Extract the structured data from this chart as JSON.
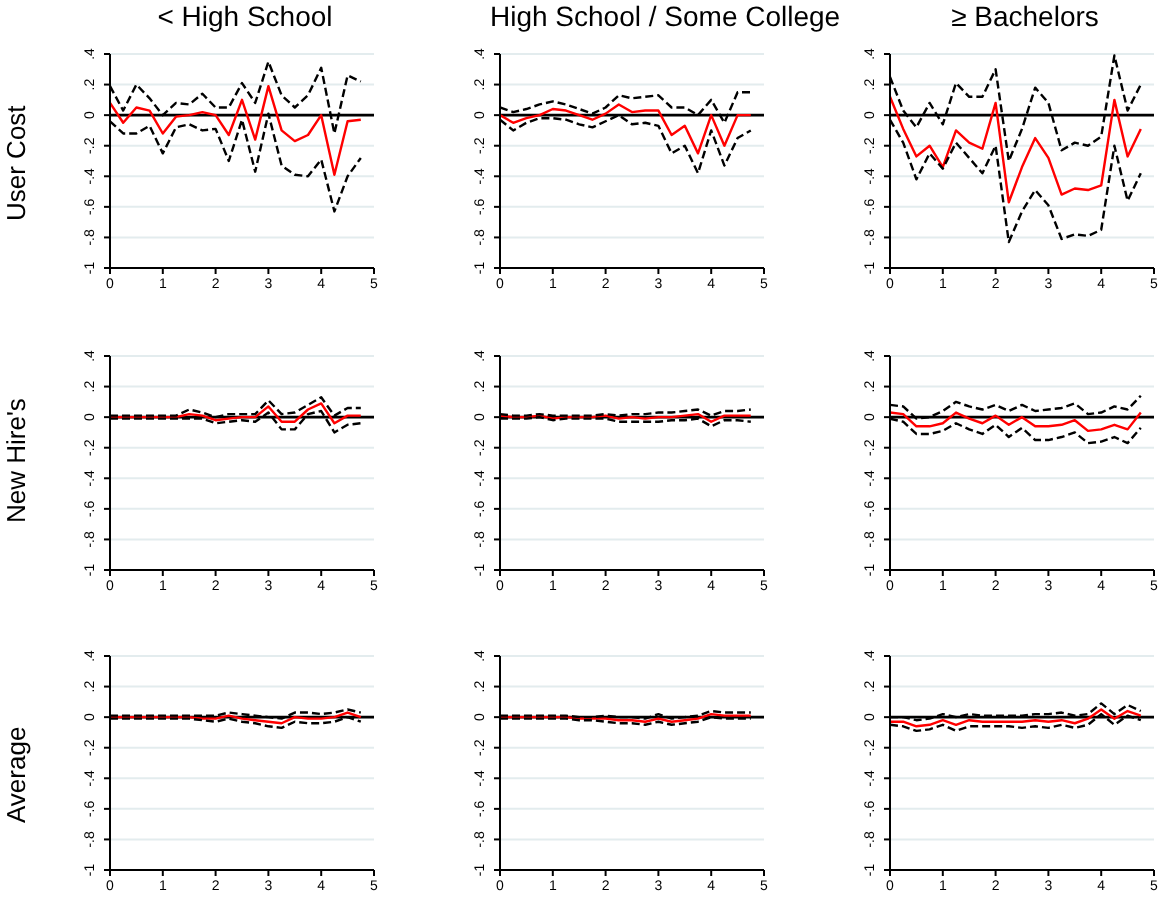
{
  "chart_data": [
    {
      "type": "line",
      "title": "< High School",
      "ylabel": "User Cost",
      "x": [
        0,
        0.25,
        0.5,
        0.75,
        1,
        1.25,
        1.5,
        1.75,
        2,
        2.25,
        2.5,
        2.75,
        3,
        3.25,
        3.5,
        3.75,
        4,
        4.25,
        4.5,
        4.75
      ],
      "xlim": [
        0,
        5
      ],
      "xticks": [
        0,
        1,
        2,
        3,
        4,
        5
      ],
      "ylim": [
        -1,
        0.4
      ],
      "yticks": [
        {
          "value": 0.4,
          "label": ".4"
        },
        {
          "value": 0.2,
          "label": ".2"
        },
        {
          "value": 0,
          "label": "0"
        },
        {
          "value": -0.2,
          "label": "-.2"
        },
        {
          "value": -0.4,
          "label": "-.4"
        },
        {
          "value": -0.6,
          "label": "-.6"
        },
        {
          "value": -0.8,
          "label": "-.8"
        },
        {
          "value": -1,
          "label": "-1"
        }
      ],
      "grid": "y",
      "ref_lines": [
        {
          "axis": "y",
          "value": 0,
          "color": "#000000"
        }
      ],
      "series": [
        {
          "color": "#ff0000",
          "values": [
            0.08,
            -0.05,
            0.05,
            0.03,
            -0.12,
            -0.01,
            0,
            0.02,
            0,
            -0.13,
            0.1,
            -0.16,
            0.19,
            -0.1,
            -0.17,
            -0.13,
            0,
            -0.39,
            -0.04,
            -0.03
          ]
        },
        {
          "color": "#000000",
          "line_style": "dashed",
          "values": [
            0.19,
            0.03,
            0.2,
            0.11,
            0,
            0.08,
            0.07,
            0.14,
            0.05,
            0.05,
            0.21,
            0.08,
            0.35,
            0.13,
            0.05,
            0.13,
            0.31,
            -0.12,
            0.26,
            0.22
          ]
        },
        {
          "color": "#000000",
          "line_style": "dashed",
          "values": [
            -0.04,
            -0.12,
            -0.12,
            -0.07,
            -0.25,
            -0.08,
            -0.06,
            -0.1,
            -0.09,
            -0.3,
            -0.03,
            -0.37,
            0.01,
            -0.33,
            -0.39,
            -0.4,
            -0.29,
            -0.63,
            -0.4,
            -0.28
          ]
        }
      ]
    },
    {
      "type": "line",
      "title": "High School / Some College",
      "x": [
        0,
        0.25,
        0.5,
        0.75,
        1,
        1.25,
        1.5,
        1.75,
        2,
        2.25,
        2.5,
        2.75,
        3,
        3.25,
        3.5,
        3.75,
        4,
        4.25,
        4.5,
        4.75
      ],
      "xlim": [
        0,
        5
      ],
      "xticks": [
        0,
        1,
        2,
        3,
        4,
        5
      ],
      "ylim": [
        -1,
        0.4
      ],
      "yticks": [
        {
          "value": 0.4,
          "label": ".4"
        },
        {
          "value": 0.2,
          "label": ".2"
        },
        {
          "value": 0,
          "label": "0"
        },
        {
          "value": -0.2,
          "label": "-.2"
        },
        {
          "value": -0.4,
          "label": "-.4"
        },
        {
          "value": -0.6,
          "label": "-.6"
        },
        {
          "value": -0.8,
          "label": "-.8"
        },
        {
          "value": -1,
          "label": "-1"
        }
      ],
      "grid": "y",
      "ref_lines": [
        {
          "axis": "y",
          "value": 0,
          "color": "#000000"
        }
      ],
      "series": [
        {
          "color": "#ff0000",
          "values": [
            0,
            -0.05,
            -0.02,
            0,
            0.04,
            0.03,
            0,
            -0.03,
            0.01,
            0.07,
            0.02,
            0.03,
            0.03,
            -0.13,
            -0.07,
            -0.25,
            0,
            -0.2,
            0,
            0
          ]
        },
        {
          "color": "#000000",
          "line_style": "dashed",
          "values": [
            0.05,
            0.02,
            0.04,
            0.07,
            0.09,
            0.07,
            0.04,
            0.01,
            0.05,
            0.13,
            0.11,
            0.12,
            0.13,
            0.05,
            0.05,
            0,
            0.1,
            -0.05,
            0.15,
            0.15
          ]
        },
        {
          "color": "#000000",
          "line_style": "dashed",
          "values": [
            -0.03,
            -0.1,
            -0.05,
            -0.02,
            -0.02,
            -0.03,
            -0.06,
            -0.08,
            -0.04,
            0,
            -0.06,
            -0.05,
            -0.07,
            -0.25,
            -0.2,
            -0.38,
            -0.1,
            -0.33,
            -0.15,
            -0.1
          ]
        }
      ]
    },
    {
      "type": "line",
      "title": "≥ Bachelors",
      "x": [
        0,
        0.25,
        0.5,
        0.75,
        1,
        1.25,
        1.5,
        1.75,
        2,
        2.25,
        2.5,
        2.75,
        3,
        3.25,
        3.5,
        3.75,
        4,
        4.25,
        4.5,
        4.75
      ],
      "xlim": [
        0,
        5
      ],
      "xticks": [
        0,
        1,
        2,
        3,
        4,
        5
      ],
      "ylim": [
        -1,
        0.4
      ],
      "yticks": [
        {
          "value": 0.4,
          "label": ".4"
        },
        {
          "value": 0.2,
          "label": ".2"
        },
        {
          "value": 0,
          "label": "0"
        },
        {
          "value": -0.2,
          "label": "-.2"
        },
        {
          "value": -0.4,
          "label": "-.4"
        },
        {
          "value": -0.6,
          "label": "-.6"
        },
        {
          "value": -0.8,
          "label": "-.8"
        },
        {
          "value": -1,
          "label": "-1"
        }
      ],
      "grid": "y",
      "ref_lines": [
        {
          "axis": "y",
          "value": 0,
          "color": "#000000"
        }
      ],
      "series": [
        {
          "color": "#ff0000",
          "values": [
            0.12,
            -0.09,
            -0.27,
            -0.2,
            -0.34,
            -0.1,
            -0.18,
            -0.22,
            0.08,
            -0.57,
            -0.34,
            -0.15,
            -0.28,
            -0.52,
            -0.48,
            -0.49,
            -0.46,
            0.1,
            -0.27,
            -0.09
          ]
        },
        {
          "color": "#000000",
          "line_style": "dashed",
          "values": [
            0.25,
            0.03,
            -0.08,
            0.08,
            -0.06,
            0.21,
            0.12,
            0.12,
            0.3,
            -0.3,
            -0.09,
            0.18,
            0.08,
            -0.23,
            -0.18,
            -0.2,
            -0.14,
            0.39,
            0.03,
            0.2
          ]
        },
        {
          "color": "#000000",
          "line_style": "dashed",
          "values": [
            -0.03,
            -0.18,
            -0.42,
            -0.25,
            -0.35,
            -0.18,
            -0.28,
            -0.38,
            -0.2,
            -0.83,
            -0.63,
            -0.49,
            -0.59,
            -0.81,
            -0.78,
            -0.79,
            -0.75,
            -0.2,
            -0.56,
            -0.38
          ]
        }
      ]
    },
    {
      "type": "line",
      "ylabel": "New Hire's",
      "x": [
        0,
        0.25,
        0.5,
        0.75,
        1,
        1.25,
        1.5,
        1.75,
        2,
        2.25,
        2.5,
        2.75,
        3,
        3.25,
        3.5,
        3.75,
        4,
        4.25,
        4.5,
        4.75
      ],
      "xlim": [
        0,
        5
      ],
      "xticks": [
        0,
        1,
        2,
        3,
        4,
        5
      ],
      "ylim": [
        -1,
        0.4
      ],
      "yticks": [
        {
          "value": 0.4,
          "label": ".4"
        },
        {
          "value": 0.2,
          "label": ".2"
        },
        {
          "value": 0,
          "label": "0"
        },
        {
          "value": -0.2,
          "label": "-.2"
        },
        {
          "value": -0.4,
          "label": "-.4"
        },
        {
          "value": -0.6,
          "label": "-.6"
        },
        {
          "value": -0.8,
          "label": "-.8"
        },
        {
          "value": -1,
          "label": "-1"
        }
      ],
      "grid": "y",
      "ref_lines": [
        {
          "axis": "y",
          "value": 0,
          "color": "#000000"
        }
      ],
      "series": [
        {
          "color": "#ff0000",
          "values": [
            0,
            0,
            0,
            0,
            0,
            0,
            0.02,
            0.01,
            -0.02,
            -0.01,
            0,
            0,
            0.07,
            -0.03,
            -0.03,
            0.05,
            0.09,
            -0.04,
            0.01,
            0.01
          ]
        },
        {
          "color": "#000000",
          "line_style": "dashed",
          "values": [
            0.01,
            0.01,
            0.01,
            0.01,
            0.01,
            0.01,
            0.05,
            0.03,
            0,
            0.02,
            0.02,
            0.02,
            0.11,
            0.02,
            0.03,
            0.08,
            0.13,
            0.01,
            0.06,
            0.06
          ]
        },
        {
          "color": "#000000",
          "line_style": "dashed",
          "values": [
            -0.01,
            -0.01,
            -0.01,
            -0.01,
            -0.01,
            -0.01,
            -0.01,
            -0.01,
            -0.04,
            -0.03,
            -0.02,
            -0.03,
            0.03,
            -0.08,
            -0.08,
            0.02,
            0.04,
            -0.1,
            -0.05,
            -0.04
          ]
        }
      ]
    },
    {
      "type": "line",
      "x": [
        0,
        0.25,
        0.5,
        0.75,
        1,
        1.25,
        1.5,
        1.75,
        2,
        2.25,
        2.5,
        2.75,
        3,
        3.25,
        3.5,
        3.75,
        4,
        4.25,
        4.5,
        4.75
      ],
      "xlim": [
        0,
        5
      ],
      "xticks": [
        0,
        1,
        2,
        3,
        4,
        5
      ],
      "ylim": [
        -1,
        0.4
      ],
      "yticks": [
        {
          "value": 0.4,
          "label": ".4"
        },
        {
          "value": 0.2,
          "label": ".2"
        },
        {
          "value": 0,
          "label": "0"
        },
        {
          "value": -0.2,
          "label": "-.2"
        },
        {
          "value": -0.4,
          "label": "-.4"
        },
        {
          "value": -0.6,
          "label": "-.6"
        },
        {
          "value": -0.8,
          "label": "-.8"
        },
        {
          "value": -1,
          "label": "-1"
        }
      ],
      "grid": "y",
      "ref_lines": [
        {
          "axis": "y",
          "value": 0,
          "color": "#000000"
        }
      ],
      "series": [
        {
          "color": "#ff0000",
          "values": [
            0.01,
            0,
            0,
            0.01,
            -0.01,
            0,
            0,
            0,
            0.01,
            -0.01,
            0,
            -0.01,
            0,
            0,
            0.01,
            0.02,
            -0.03,
            0.01,
            0.01,
            0.01
          ]
        },
        {
          "color": "#000000",
          "line_style": "dashed",
          "values": [
            0.02,
            0.01,
            0.01,
            0.02,
            0.01,
            0.01,
            0.01,
            0.01,
            0.02,
            0.01,
            0.02,
            0.02,
            0.03,
            0.03,
            0.04,
            0.05,
            0.01,
            0.04,
            0.04,
            0.05
          ]
        },
        {
          "color": "#000000",
          "line_style": "dashed",
          "values": [
            -0.01,
            -0.01,
            -0.01,
            0,
            -0.02,
            -0.01,
            -0.01,
            -0.01,
            -0.01,
            -0.03,
            -0.03,
            -0.03,
            -0.03,
            -0.02,
            -0.02,
            -0.01,
            -0.06,
            -0.02,
            -0.02,
            -0.03
          ]
        }
      ]
    },
    {
      "type": "line",
      "x": [
        0,
        0.25,
        0.5,
        0.75,
        1,
        1.25,
        1.5,
        1.75,
        2,
        2.25,
        2.5,
        2.75,
        3,
        3.25,
        3.5,
        3.75,
        4,
        4.25,
        4.5,
        4.75
      ],
      "xlim": [
        0,
        5
      ],
      "xticks": [
        0,
        1,
        2,
        3,
        4,
        5
      ],
      "ylim": [
        -1,
        0.4
      ],
      "yticks": [
        {
          "value": 0.4,
          "label": ".4"
        },
        {
          "value": 0.2,
          "label": ".2"
        },
        {
          "value": 0,
          "label": "0"
        },
        {
          "value": -0.2,
          "label": "-.2"
        },
        {
          "value": -0.4,
          "label": "-.4"
        },
        {
          "value": -0.6,
          "label": "-.6"
        },
        {
          "value": -0.8,
          "label": "-.8"
        },
        {
          "value": -1,
          "label": "-1"
        }
      ],
      "grid": "y",
      "ref_lines": [
        {
          "axis": "y",
          "value": 0,
          "color": "#000000"
        }
      ],
      "series": [
        {
          "color": "#ff0000",
          "values": [
            0.03,
            0.02,
            -0.06,
            -0.06,
            -0.04,
            0.03,
            -0.01,
            -0.04,
            0.01,
            -0.05,
            0,
            -0.06,
            -0.06,
            -0.05,
            -0.02,
            -0.09,
            -0.08,
            -0.05,
            -0.08,
            0.03
          ]
        },
        {
          "color": "#000000",
          "line_style": "dashed",
          "values": [
            0.08,
            0.07,
            -0.01,
            0,
            0.04,
            0.1,
            0.07,
            0.05,
            0.08,
            0.04,
            0.08,
            0.04,
            0.05,
            0.06,
            0.09,
            0.02,
            0.03,
            0.07,
            0.05,
            0.14
          ]
        },
        {
          "color": "#000000",
          "line_style": "dashed",
          "values": [
            -0.01,
            -0.03,
            -0.11,
            -0.11,
            -0.09,
            -0.04,
            -0.08,
            -0.11,
            -0.05,
            -0.13,
            -0.07,
            -0.15,
            -0.15,
            -0.13,
            -0.1,
            -0.17,
            -0.16,
            -0.13,
            -0.17,
            -0.07
          ]
        }
      ]
    },
    {
      "type": "line",
      "ylabel": "Average",
      "x": [
        0,
        0.25,
        0.5,
        0.75,
        1,
        1.25,
        1.5,
        1.75,
        2,
        2.25,
        2.5,
        2.75,
        3,
        3.25,
        3.5,
        3.75,
        4,
        4.25,
        4.5,
        4.75
      ],
      "xlim": [
        0,
        5
      ],
      "xticks": [
        0,
        1,
        2,
        3,
        4,
        5
      ],
      "ylim": [
        -1,
        0.4
      ],
      "yticks": [
        {
          "value": 0.4,
          "label": ".4"
        },
        {
          "value": 0.2,
          "label": ".2"
        },
        {
          "value": 0,
          "label": "0"
        },
        {
          "value": -0.2,
          "label": "-.2"
        },
        {
          "value": -0.4,
          "label": "-.4"
        },
        {
          "value": -0.6,
          "label": "-.6"
        },
        {
          "value": -0.8,
          "label": "-.8"
        },
        {
          "value": -1,
          "label": "-1"
        }
      ],
      "grid": "y",
      "ref_lines": [
        {
          "axis": "y",
          "value": 0,
          "color": "#000000"
        }
      ],
      "series": [
        {
          "color": "#ff0000",
          "values": [
            0,
            0,
            0,
            0,
            0,
            0,
            0,
            -0.01,
            -0.01,
            0.01,
            -0.01,
            -0.02,
            -0.03,
            -0.04,
            0,
            -0.01,
            -0.01,
            0,
            0.03,
            0
          ]
        },
        {
          "color": "#000000",
          "line_style": "dashed",
          "values": [
            0.01,
            0.01,
            0.01,
            0.01,
            0.01,
            0.01,
            0.01,
            0.01,
            0.01,
            0.03,
            0.02,
            0.01,
            0,
            -0.01,
            0.03,
            0.03,
            0.02,
            0.03,
            0.05,
            0.03
          ]
        },
        {
          "color": "#000000",
          "line_style": "dashed",
          "values": [
            -0.01,
            -0.01,
            -0.01,
            -0.01,
            -0.01,
            -0.01,
            -0.01,
            -0.02,
            -0.03,
            -0.01,
            -0.03,
            -0.04,
            -0.06,
            -0.07,
            -0.03,
            -0.04,
            -0.04,
            -0.03,
            0,
            -0.03
          ]
        }
      ]
    },
    {
      "type": "line",
      "x": [
        0,
        0.25,
        0.5,
        0.75,
        1,
        1.25,
        1.5,
        1.75,
        2,
        2.25,
        2.5,
        2.75,
        3,
        3.25,
        3.5,
        3.75,
        4,
        4.25,
        4.5,
        4.75
      ],
      "xlim": [
        0,
        5
      ],
      "xticks": [
        0,
        1,
        2,
        3,
        4,
        5
      ],
      "ylim": [
        -1,
        0.4
      ],
      "yticks": [
        {
          "value": 0.4,
          "label": ".4"
        },
        {
          "value": 0.2,
          "label": ".2"
        },
        {
          "value": 0,
          "label": "0"
        },
        {
          "value": -0.2,
          "label": "-.2"
        },
        {
          "value": -0.4,
          "label": "-.4"
        },
        {
          "value": -0.6,
          "label": "-.6"
        },
        {
          "value": -0.8,
          "label": "-.8"
        },
        {
          "value": -1,
          "label": "-1"
        }
      ],
      "grid": "y",
      "ref_lines": [
        {
          "axis": "y",
          "value": 0,
          "color": "#000000"
        }
      ],
      "series": [
        {
          "color": "#ff0000",
          "values": [
            0,
            0,
            0,
            0,
            0,
            0,
            -0.01,
            -0.01,
            -0.01,
            -0.02,
            -0.02,
            -0.03,
            -0.01,
            -0.03,
            -0.02,
            -0.01,
            0.02,
            0.01,
            0.01,
            0.01
          ]
        },
        {
          "color": "#000000",
          "line_style": "dashed",
          "values": [
            0.01,
            0.01,
            0.01,
            0.01,
            0.01,
            0.01,
            0,
            0,
            0.01,
            0,
            0,
            -0.01,
            0.02,
            -0.01,
            0,
            0.01,
            0.04,
            0.03,
            0.03,
            0.03
          ]
        },
        {
          "color": "#000000",
          "line_style": "dashed",
          "values": [
            -0.01,
            -0.01,
            -0.01,
            -0.01,
            -0.01,
            -0.01,
            -0.02,
            -0.02,
            -0.03,
            -0.04,
            -0.04,
            -0.05,
            -0.03,
            -0.05,
            -0.04,
            -0.03,
            0,
            -0.01,
            -0.01,
            -0.01
          ]
        }
      ]
    },
    {
      "type": "line",
      "x": [
        0,
        0.25,
        0.5,
        0.75,
        1,
        1.25,
        1.5,
        1.75,
        2,
        2.25,
        2.5,
        2.75,
        3,
        3.25,
        3.5,
        3.75,
        4,
        4.25,
        4.5,
        4.75
      ],
      "xlim": [
        0,
        5
      ],
      "xticks": [
        0,
        1,
        2,
        3,
        4,
        5
      ],
      "ylim": [
        -1,
        0.4
      ],
      "yticks": [
        {
          "value": 0.4,
          "label": ".4"
        },
        {
          "value": 0.2,
          "label": ".2"
        },
        {
          "value": 0,
          "label": "0"
        },
        {
          "value": -0.2,
          "label": "-.2"
        },
        {
          "value": -0.4,
          "label": "-.4"
        },
        {
          "value": -0.6,
          "label": "-.6"
        },
        {
          "value": -0.8,
          "label": "-.8"
        },
        {
          "value": -1,
          "label": "-1"
        }
      ],
      "grid": "y",
      "ref_lines": [
        {
          "axis": "y",
          "value": 0,
          "color": "#000000"
        }
      ],
      "series": [
        {
          "color": "#ff0000",
          "values": [
            -0.03,
            -0.03,
            -0.06,
            -0.05,
            -0.02,
            -0.05,
            -0.02,
            -0.03,
            -0.03,
            -0.03,
            -0.03,
            -0.02,
            -0.03,
            -0.02,
            -0.04,
            -0.01,
            0.05,
            -0.01,
            0.04,
            0.01
          ]
        },
        {
          "color": "#000000",
          "line_style": "dashed",
          "values": [
            0,
            0,
            -0.02,
            -0.01,
            0.02,
            0,
            0.02,
            0.01,
            0.01,
            0.01,
            0.01,
            0.02,
            0.02,
            0.03,
            0.01,
            0.02,
            0.09,
            0.02,
            0.08,
            0.04
          ]
        },
        {
          "color": "#000000",
          "line_style": "dashed",
          "values": [
            -0.05,
            -0.06,
            -0.09,
            -0.08,
            -0.05,
            -0.09,
            -0.06,
            -0.06,
            -0.06,
            -0.06,
            -0.07,
            -0.06,
            -0.07,
            -0.05,
            -0.07,
            -0.05,
            0.02,
            -0.05,
            0.01,
            -0.02
          ]
        }
      ]
    }
  ]
}
